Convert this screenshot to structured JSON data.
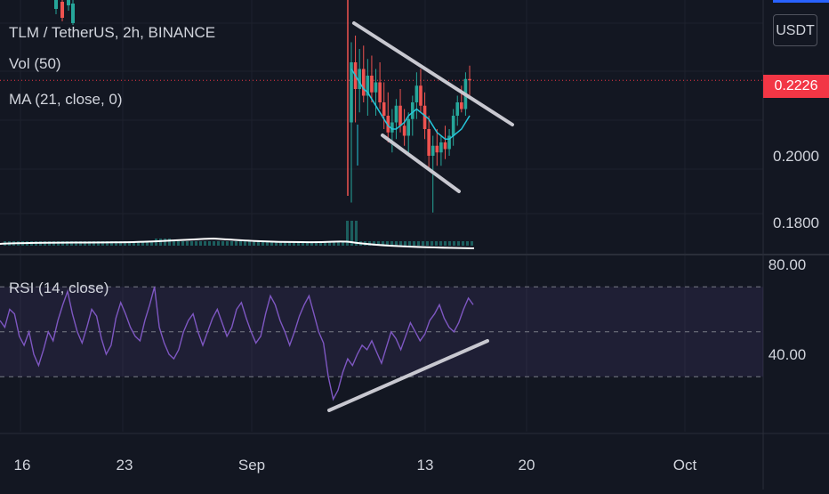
{
  "header": {
    "symbol_line": "TLM / TetherUS, 2h, BINANCE",
    "vol_label": "Vol (50)",
    "ma_label": "MA (21, close, 0)",
    "rsi_label": "RSI (14, close)"
  },
  "scale_button": "USDT",
  "last_price": "0.2226",
  "colors": {
    "background": "#131722",
    "up_candle": "#26a69a",
    "down_candle": "#ef5350",
    "ma_line": "#26c6da",
    "volume_ma": "#ffffff",
    "rsi_line": "#7e57c2",
    "price_tag": "#f23645",
    "trendline": "#c8c8d0"
  },
  "chart_data": [
    {
      "type": "candlestick",
      "title": "TLM / TetherUS, 2h, BINANCE",
      "yticks": [
        "0.2000",
        "0.1800"
      ],
      "ylim": [
        0.171,
        0.237
      ],
      "xticks": [
        "16",
        "23",
        "Sep",
        "13",
        "20",
        "Oct"
      ],
      "last_price": 0.2226,
      "candles": [
        {
          "o": 0.21,
          "h": 0.234,
          "l": 0.186,
          "c": 0.228
        },
        {
          "o": 0.228,
          "h": 0.236,
          "l": 0.21,
          "c": 0.22
        },
        {
          "o": 0.22,
          "h": 0.232,
          "l": 0.213,
          "c": 0.226
        },
        {
          "o": 0.226,
          "h": 0.233,
          "l": 0.216,
          "c": 0.218
        },
        {
          "o": 0.218,
          "h": 0.229,
          "l": 0.212,
          "c": 0.224
        },
        {
          "o": 0.224,
          "h": 0.23,
          "l": 0.216,
          "c": 0.219
        },
        {
          "o": 0.219,
          "h": 0.226,
          "l": 0.212,
          "c": 0.222
        },
        {
          "o": 0.222,
          "h": 0.228,
          "l": 0.214,
          "c": 0.216
        },
        {
          "o": 0.216,
          "h": 0.222,
          "l": 0.208,
          "c": 0.212
        },
        {
          "o": 0.212,
          "h": 0.219,
          "l": 0.204,
          "c": 0.207
        },
        {
          "o": 0.207,
          "h": 0.214,
          "l": 0.201,
          "c": 0.21
        },
        {
          "o": 0.21,
          "h": 0.217,
          "l": 0.205,
          "c": 0.215
        },
        {
          "o": 0.215,
          "h": 0.22,
          "l": 0.207,
          "c": 0.209
        },
        {
          "o": 0.209,
          "h": 0.214,
          "l": 0.203,
          "c": 0.206
        },
        {
          "o": 0.206,
          "h": 0.213,
          "l": 0.201,
          "c": 0.211
        },
        {
          "o": 0.211,
          "h": 0.218,
          "l": 0.206,
          "c": 0.216
        },
        {
          "o": 0.216,
          "h": 0.225,
          "l": 0.211,
          "c": 0.221
        },
        {
          "o": 0.221,
          "h": 0.226,
          "l": 0.213,
          "c": 0.215
        },
        {
          "o": 0.215,
          "h": 0.219,
          "l": 0.205,
          "c": 0.208
        },
        {
          "o": 0.208,
          "h": 0.212,
          "l": 0.196,
          "c": 0.2
        },
        {
          "o": 0.2,
          "h": 0.206,
          "l": 0.183,
          "c": 0.203
        },
        {
          "o": 0.203,
          "h": 0.208,
          "l": 0.197,
          "c": 0.201
        },
        {
          "o": 0.201,
          "h": 0.206,
          "l": 0.197,
          "c": 0.204
        },
        {
          "o": 0.204,
          "h": 0.209,
          "l": 0.199,
          "c": 0.202
        },
        {
          "o": 0.202,
          "h": 0.208,
          "l": 0.2,
          "c": 0.206
        },
        {
          "o": 0.206,
          "h": 0.214,
          "l": 0.203,
          "c": 0.212
        },
        {
          "o": 0.212,
          "h": 0.218,
          "l": 0.209,
          "c": 0.216
        },
        {
          "o": 0.216,
          "h": 0.221,
          "l": 0.213,
          "c": 0.214
        },
        {
          "o": 0.214,
          "h": 0.225,
          "l": 0.212,
          "c": 0.223
        },
        {
          "o": 0.223,
          "h": 0.227,
          "l": 0.217,
          "c": 0.2226
        }
      ],
      "ma": [
        0.226,
        0.224,
        0.222,
        0.22,
        0.219,
        0.217,
        0.215,
        0.213,
        0.211,
        0.209,
        0.208,
        0.208,
        0.209,
        0.21,
        0.212,
        0.213,
        0.214,
        0.213,
        0.212,
        0.211,
        0.209,
        0.207,
        0.206,
        0.205,
        0.205,
        0.206,
        0.207,
        0.208,
        0.21,
        0.212
      ]
    },
    {
      "type": "line",
      "title": "RSI (14, close)",
      "yticks": [
        "80.00",
        "40.00"
      ],
      "ylim": [
        10,
        85
      ],
      "bands": {
        "upper": 70,
        "middle": 50,
        "lower": 30
      },
      "values": [
        55,
        52,
        60,
        58,
        48,
        44,
        50,
        40,
        35,
        42,
        50,
        46,
        55,
        62,
        68,
        58,
        50,
        45,
        52,
        60,
        57,
        47,
        40,
        44,
        56,
        63,
        58,
        52,
        48,
        46,
        55,
        62,
        70,
        52,
        45,
        40,
        38,
        42,
        50,
        55,
        58,
        50,
        44,
        50,
        56,
        60,
        54,
        48,
        52,
        60,
        63,
        56,
        50,
        45,
        48,
        58,
        66,
        62,
        55,
        50,
        44,
        50,
        57,
        62,
        66,
        58,
        50,
        45,
        30,
        20,
        24,
        32,
        38,
        35,
        40,
        44,
        42,
        46,
        41,
        36,
        43,
        50,
        47,
        42,
        48,
        54,
        50,
        46,
        49,
        55,
        58,
        62,
        56,
        52,
        50,
        54,
        60,
        65,
        62
      ]
    }
  ]
}
